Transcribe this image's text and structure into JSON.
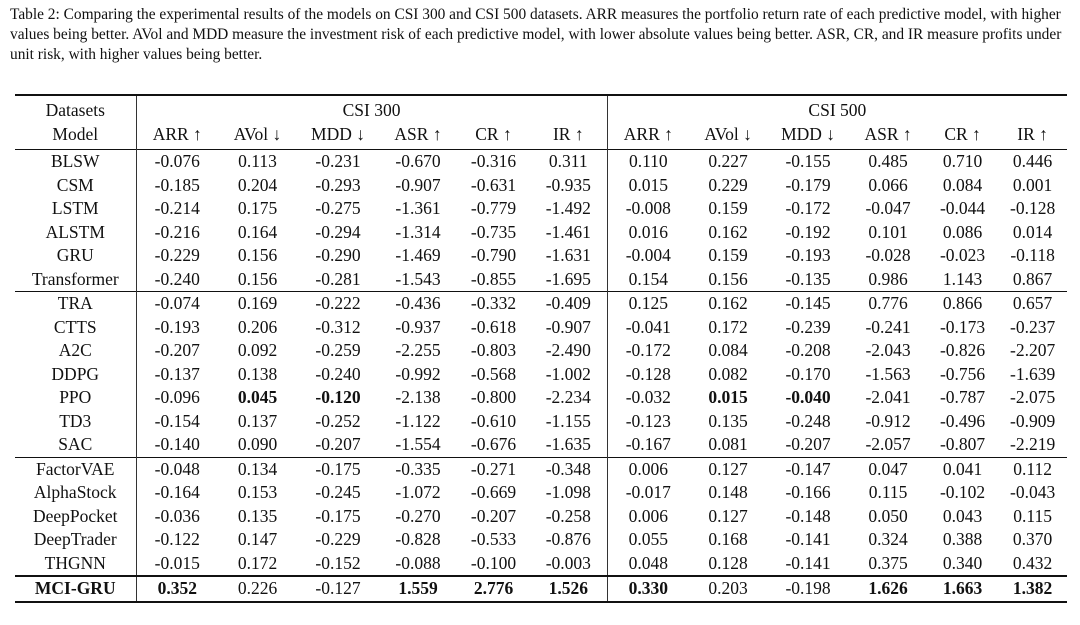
{
  "caption": "Table 2: Comparing the experimental results of the models on CSI 300 and CSI 500 datasets. ARR measures the portfolio return rate of each predictive model, with higher values being better. AVol and MDD measure the investment risk of each predictive model, with lower absolute values being better. ASR, CR, and IR measure profits under unit risk, with higher values being better.",
  "header": {
    "datasets_label": "Datasets",
    "model_label": "Model",
    "groups": [
      "CSI 300",
      "CSI 500"
    ],
    "metrics": [
      "ARR ↑",
      "AVol ↓",
      "MDD ↓",
      "ASR ↑",
      "CR ↑",
      "IR ↑"
    ]
  },
  "sections": [
    {
      "rows": [
        {
          "model": "BLSW",
          "values": [
            "-0.076",
            "0.113",
            "-0.231",
            "-0.670",
            "-0.316",
            "0.311",
            "0.110",
            "0.227",
            "-0.155",
            "0.485",
            "0.710",
            "0.446"
          ],
          "bold": []
        },
        {
          "model": "CSM",
          "values": [
            "-0.185",
            "0.204",
            "-0.293",
            "-0.907",
            "-0.631",
            "-0.935",
            "0.015",
            "0.229",
            "-0.179",
            "0.066",
            "0.084",
            "0.001"
          ],
          "bold": []
        },
        {
          "model": "LSTM",
          "values": [
            "-0.214",
            "0.175",
            "-0.275",
            "-1.361",
            "-0.779",
            "-1.492",
            "-0.008",
            "0.159",
            "-0.172",
            "-0.047",
            "-0.044",
            "-0.128"
          ],
          "bold": []
        },
        {
          "model": "ALSTM",
          "values": [
            "-0.216",
            "0.164",
            "-0.294",
            "-1.314",
            "-0.735",
            "-1.461",
            "0.016",
            "0.162",
            "-0.192",
            "0.101",
            "0.086",
            "0.014"
          ],
          "bold": []
        },
        {
          "model": "GRU",
          "values": [
            "-0.229",
            "0.156",
            "-0.290",
            "-1.469",
            "-0.790",
            "-1.631",
            "-0.004",
            "0.159",
            "-0.193",
            "-0.028",
            "-0.023",
            "-0.118"
          ],
          "bold": []
        },
        {
          "model": "Transformer",
          "values": [
            "-0.240",
            "0.156",
            "-0.281",
            "-1.543",
            "-0.855",
            "-1.695",
            "0.154",
            "0.156",
            "-0.135",
            "0.986",
            "1.143",
            "0.867"
          ],
          "bold": []
        }
      ]
    },
    {
      "rows": [
        {
          "model": "TRA",
          "values": [
            "-0.074",
            "0.169",
            "-0.222",
            "-0.436",
            "-0.332",
            "-0.409",
            "0.125",
            "0.162",
            "-0.145",
            "0.776",
            "0.866",
            "0.657"
          ],
          "bold": []
        },
        {
          "model": "CTTS",
          "values": [
            "-0.193",
            "0.206",
            "-0.312",
            "-0.937",
            "-0.618",
            "-0.907",
            "-0.041",
            "0.172",
            "-0.239",
            "-0.241",
            "-0.173",
            "-0.237"
          ],
          "bold": []
        },
        {
          "model": "A2C",
          "values": [
            "-0.207",
            "0.092",
            "-0.259",
            "-2.255",
            "-0.803",
            "-2.490",
            "-0.172",
            "0.084",
            "-0.208",
            "-2.043",
            "-0.826",
            "-2.207"
          ],
          "bold": []
        },
        {
          "model": "DDPG",
          "values": [
            "-0.137",
            "0.138",
            "-0.240",
            "-0.992",
            "-0.568",
            "-1.002",
            "-0.128",
            "0.082",
            "-0.170",
            "-1.563",
            "-0.756",
            "-1.639"
          ],
          "bold": []
        },
        {
          "model": "PPO",
          "values": [
            "-0.096",
            "0.045",
            "-0.120",
            "-2.138",
            "-0.800",
            "-2.234",
            "-0.032",
            "0.015",
            "-0.040",
            "-2.041",
            "-0.787",
            "-2.075"
          ],
          "bold": [
            1,
            2,
            7,
            8
          ]
        },
        {
          "model": "TD3",
          "values": [
            "-0.154",
            "0.137",
            "-0.252",
            "-1.122",
            "-0.610",
            "-1.155",
            "-0.123",
            "0.135",
            "-0.248",
            "-0.912",
            "-0.496",
            "-0.909"
          ],
          "bold": []
        },
        {
          "model": "SAC",
          "values": [
            "-0.140",
            "0.090",
            "-0.207",
            "-1.554",
            "-0.676",
            "-1.635",
            "-0.167",
            "0.081",
            "-0.207",
            "-2.057",
            "-0.807",
            "-2.219"
          ],
          "bold": []
        }
      ]
    },
    {
      "rows": [
        {
          "model": "FactorVAE",
          "values": [
            "-0.048",
            "0.134",
            "-0.175",
            "-0.335",
            "-0.271",
            "-0.348",
            "0.006",
            "0.127",
            "-0.147",
            "0.047",
            "0.041",
            "0.112"
          ],
          "bold": []
        },
        {
          "model": "AlphaStock",
          "values": [
            "-0.164",
            "0.153",
            "-0.245",
            "-1.072",
            "-0.669",
            "-1.098",
            "-0.017",
            "0.148",
            "-0.166",
            "0.115",
            "-0.102",
            "-0.043"
          ],
          "bold": []
        },
        {
          "model": "DeepPocket",
          "values": [
            "-0.036",
            "0.135",
            "-0.175",
            "-0.270",
            "-0.207",
            "-0.258",
            "0.006",
            "0.127",
            "-0.148",
            "0.050",
            "0.043",
            "0.115"
          ],
          "bold": []
        },
        {
          "model": "DeepTrader",
          "values": [
            "-0.122",
            "0.147",
            "-0.229",
            "-0.828",
            "-0.533",
            "-0.876",
            "0.055",
            "0.168",
            "-0.141",
            "0.324",
            "0.388",
            "0.370"
          ],
          "bold": []
        },
        {
          "model": "THGNN",
          "values": [
            "-0.015",
            "0.172",
            "-0.152",
            "-0.088",
            "-0.100",
            "-0.003",
            "0.048",
            "0.128",
            "-0.141",
            "0.375",
            "0.340",
            "0.432"
          ],
          "bold": []
        }
      ]
    },
    {
      "rows": [
        {
          "model": "MCI-GRU",
          "values": [
            "0.352",
            "0.226",
            "-0.127",
            "1.559",
            "2.776",
            "1.526",
            "0.330",
            "0.203",
            "-0.198",
            "1.626",
            "1.663",
            "1.382"
          ],
          "bold": [
            -1,
            0,
            3,
            4,
            5,
            6,
            9,
            10,
            11
          ]
        }
      ]
    }
  ]
}
